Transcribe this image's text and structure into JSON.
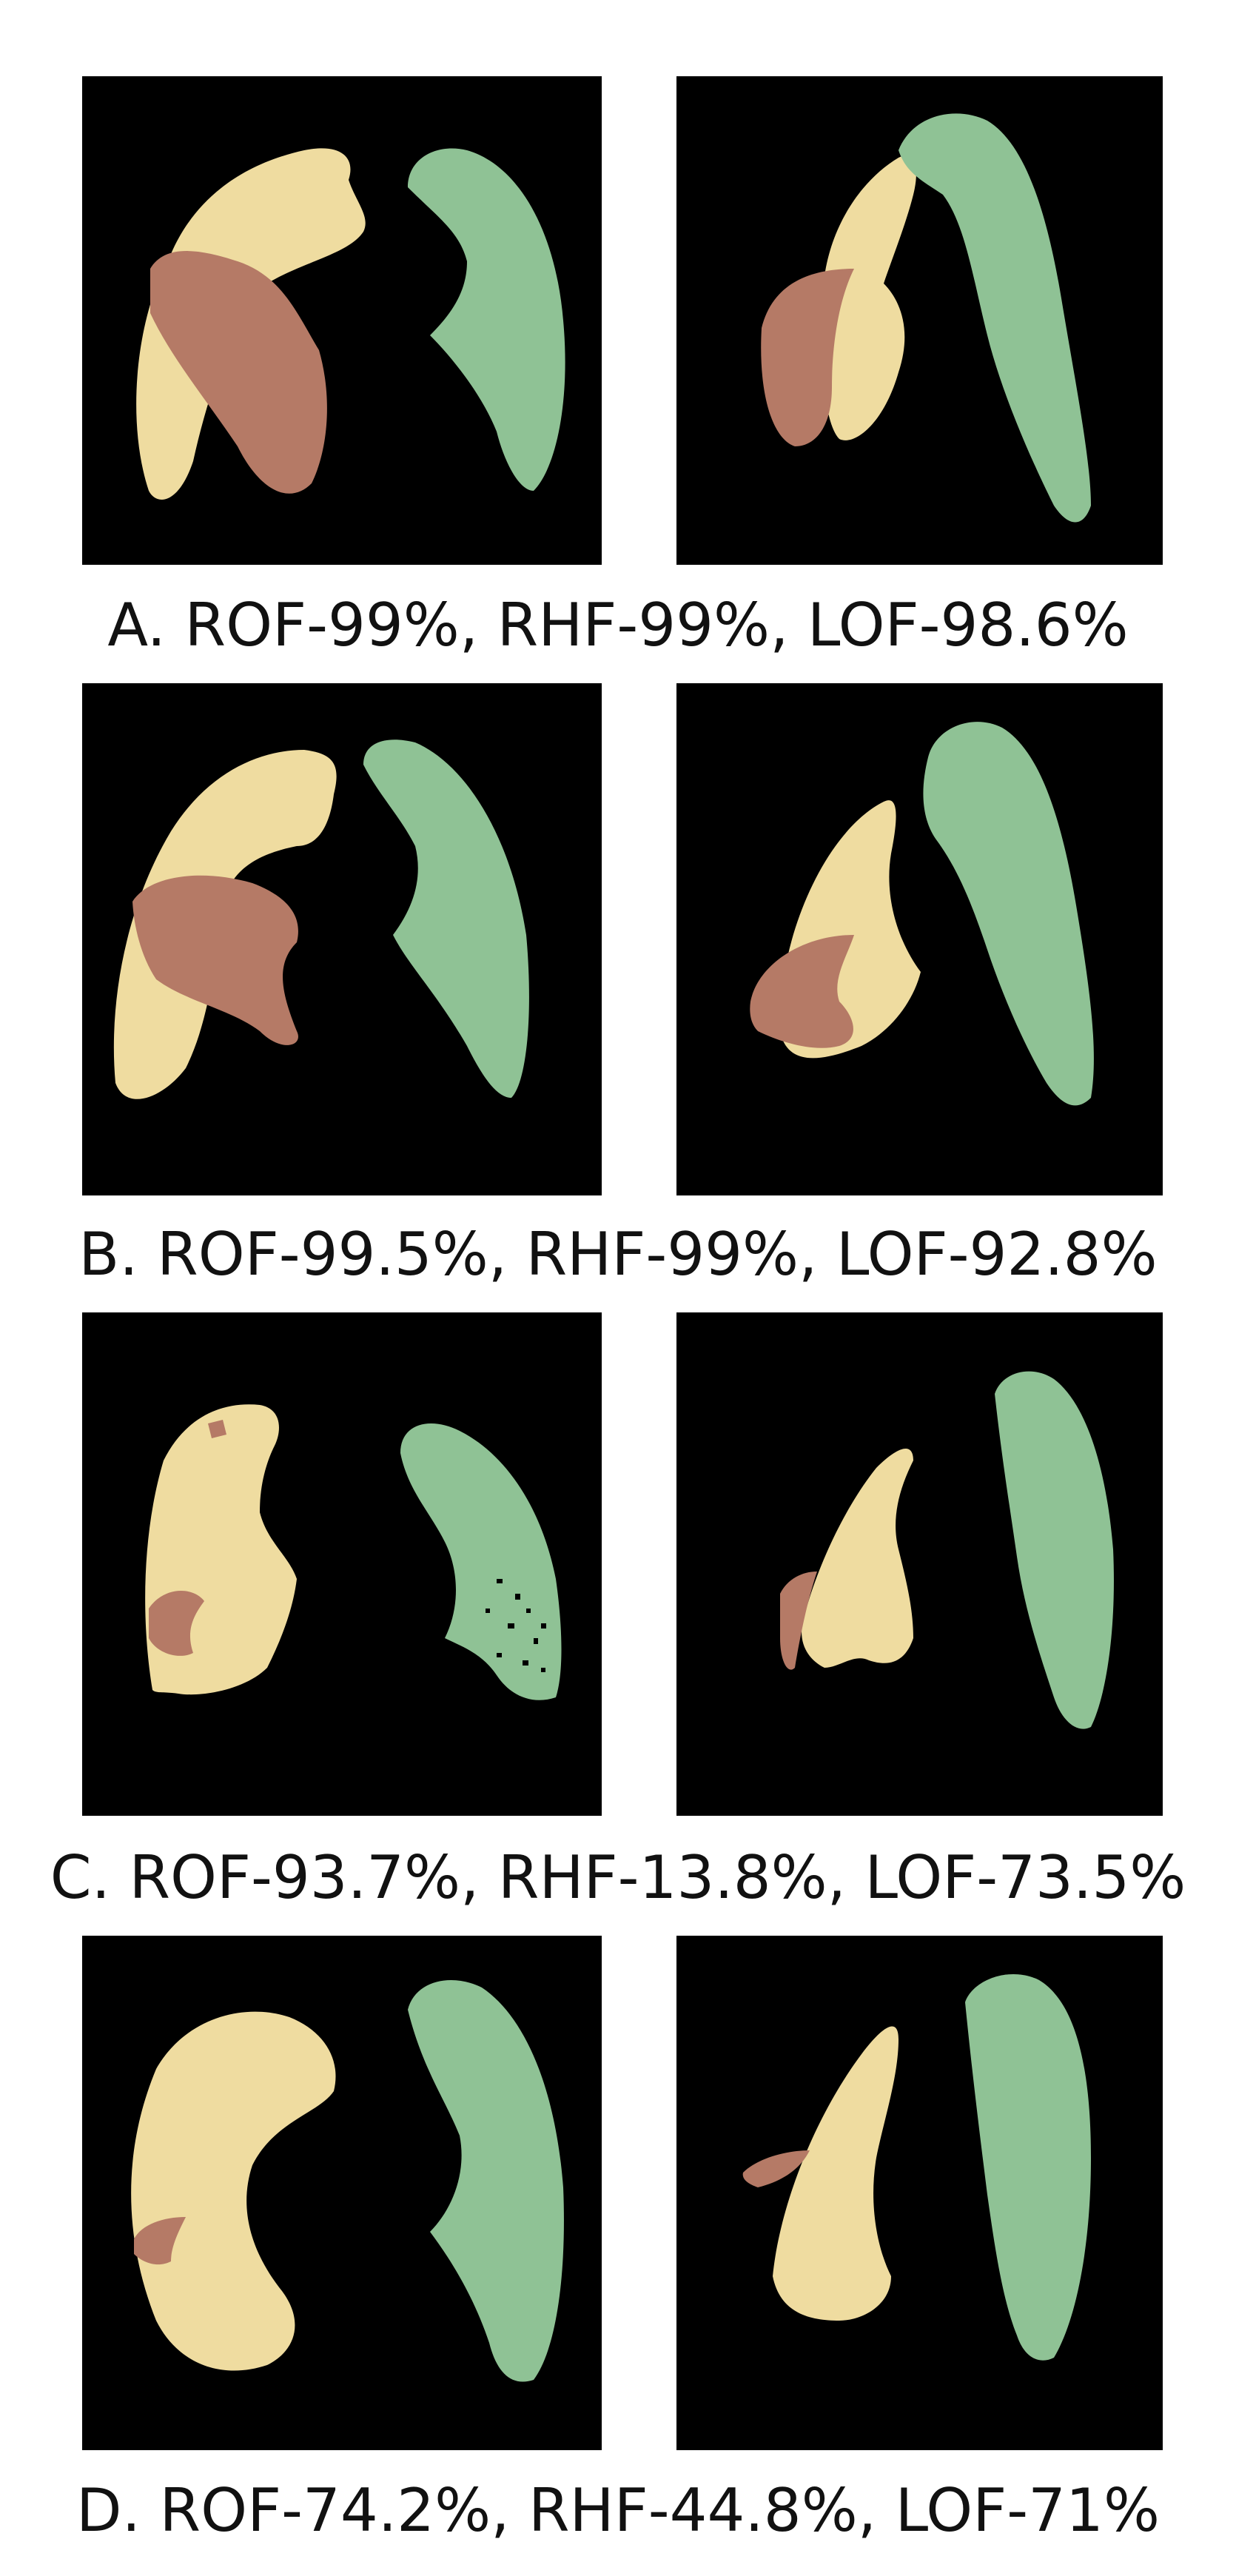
{
  "colors": {
    "background": "#000000",
    "upper_lobe": "#efdca0",
    "middle_lobe": "#b57a66",
    "left_lung": "#8fc295"
  },
  "rows": [
    {
      "label": "A. ROF-99%, RHF-99%, LOF-98.6%"
    },
    {
      "label": "B. ROF-99.5%, RHF-99%, LOF-92.8%"
    },
    {
      "label": "C. ROF-93.7%, RHF-13.8%, LOF-73.5%"
    },
    {
      "label": "D. ROF-74.2%, RHF-44.8%, LOF-71%"
    }
  ]
}
